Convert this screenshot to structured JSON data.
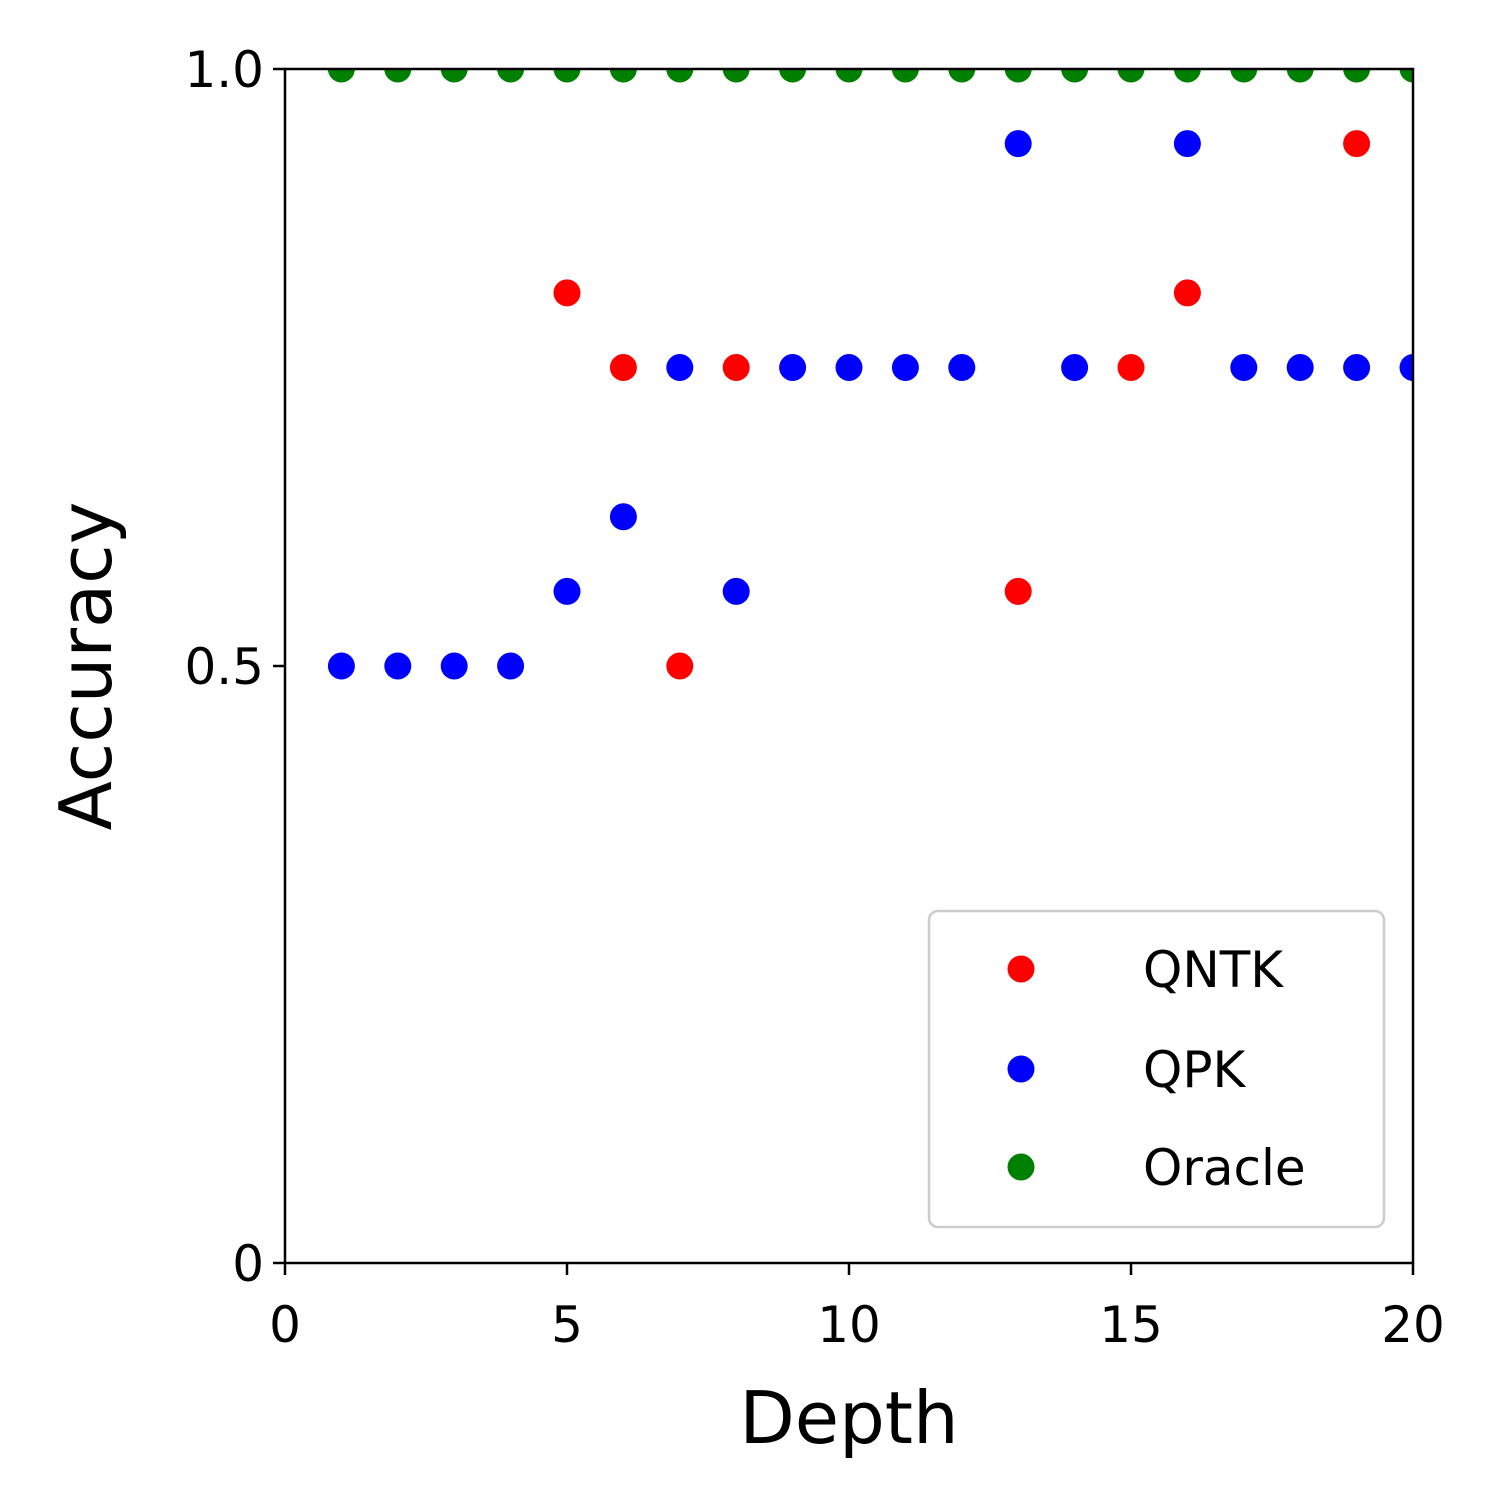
{
  "chart_data": {
    "type": "scatter",
    "title": "",
    "xlabel": "Depth",
    "ylabel": "Accuracy",
    "xlim": [
      0,
      20
    ],
    "ylim": [
      0,
      1
    ],
    "xticks": [
      0,
      5,
      10,
      15,
      20
    ],
    "xtick_labels": [
      "0",
      "5",
      "10",
      "15",
      "20"
    ],
    "yticks": [
      0,
      0.5,
      1.0
    ],
    "ytick_labels": [
      "0",
      "0.5",
      "1.0"
    ],
    "grid": false,
    "legend_position": "bottom-right",
    "series": [
      {
        "name": "QNTK",
        "color": "#ff0000",
        "points": [
          [
            5,
            0.8125
          ],
          [
            6,
            0.75
          ],
          [
            7,
            0.5
          ],
          [
            8,
            0.75
          ],
          [
            13,
            0.5625
          ],
          [
            15,
            0.75
          ],
          [
            16,
            0.8125
          ],
          [
            19,
            0.9375
          ]
        ]
      },
      {
        "name": "QPK",
        "color": "#0000ff",
        "points": [
          [
            1,
            0.5
          ],
          [
            2,
            0.5
          ],
          [
            3,
            0.5
          ],
          [
            4,
            0.5
          ],
          [
            5,
            0.5625
          ],
          [
            6,
            0.625
          ],
          [
            7,
            0.75
          ],
          [
            8,
            0.5625
          ],
          [
            9,
            0.75
          ],
          [
            10,
            0.75
          ],
          [
            11,
            0.75
          ],
          [
            12,
            0.75
          ],
          [
            13,
            0.9375
          ],
          [
            14,
            0.75
          ],
          [
            16,
            0.9375
          ],
          [
            17,
            0.75
          ],
          [
            18,
            0.75
          ],
          [
            19,
            0.75
          ],
          [
            20,
            0.75
          ]
        ]
      },
      {
        "name": "Oracle",
        "color": "#008000",
        "points": [
          [
            1,
            1.0
          ],
          [
            2,
            1.0
          ],
          [
            3,
            1.0
          ],
          [
            4,
            1.0
          ],
          [
            5,
            1.0
          ],
          [
            6,
            1.0
          ],
          [
            7,
            1.0
          ],
          [
            8,
            1.0
          ],
          [
            9,
            1.0
          ],
          [
            10,
            1.0
          ],
          [
            11,
            1.0
          ],
          [
            12,
            1.0
          ],
          [
            13,
            1.0
          ],
          [
            14,
            1.0
          ],
          [
            15,
            1.0
          ],
          [
            16,
            1.0
          ],
          [
            17,
            1.0
          ],
          [
            18,
            1.0
          ],
          [
            19,
            1.0
          ],
          [
            20,
            1.0
          ]
        ]
      }
    ]
  }
}
